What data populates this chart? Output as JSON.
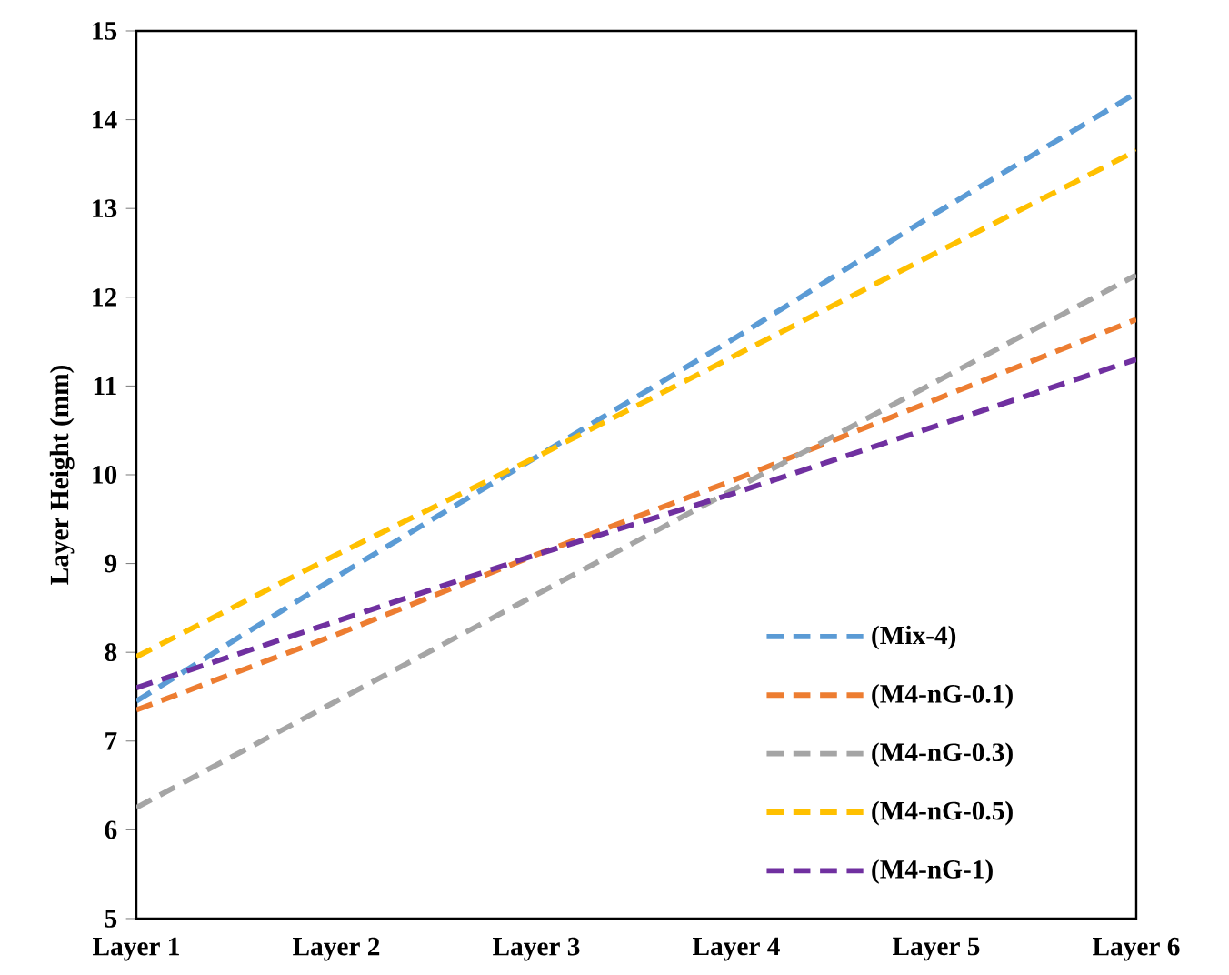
{
  "chart_data": {
    "type": "line",
    "ylabel": "Layer Height (mm)",
    "categories": [
      "Layer 1",
      "Layer 2",
      "Layer 3",
      "Layer 4",
      "Layer 5",
      "Layer 6"
    ],
    "series": [
      {
        "name": "(Mix-4)",
        "color": "#5b9bd5",
        "values": [
          7.45,
          8.85,
          10.2,
          11.55,
          12.95,
          14.3
        ]
      },
      {
        "name": "(M4-nG-0.1)",
        "color": "#ed7d31",
        "values": [
          7.35,
          8.2,
          9.1,
          9.95,
          10.85,
          11.75
        ]
      },
      {
        "name": "(M4-nG-0.3)",
        "color": "#a5a5a5",
        "values": [
          6.25,
          7.45,
          8.65,
          9.85,
          11.05,
          12.25
        ]
      },
      {
        "name": "(M4-nG-0.5)",
        "color": "#ffc000",
        "values": [
          7.95,
          9.1,
          10.2,
          11.35,
          12.5,
          13.65
        ]
      },
      {
        "name": "(M4-nG-1)",
        "color": "#7030a0",
        "values": [
          7.6,
          8.35,
          9.1,
          9.8,
          10.55,
          11.3
        ]
      }
    ],
    "ylim": [
      5,
      15
    ],
    "yticks": [
      5,
      6,
      7,
      8,
      9,
      10,
      11,
      12,
      13,
      14,
      15
    ],
    "legend": "bottom right",
    "marker": "none",
    "line_style": "dashed",
    "grid": false
  }
}
